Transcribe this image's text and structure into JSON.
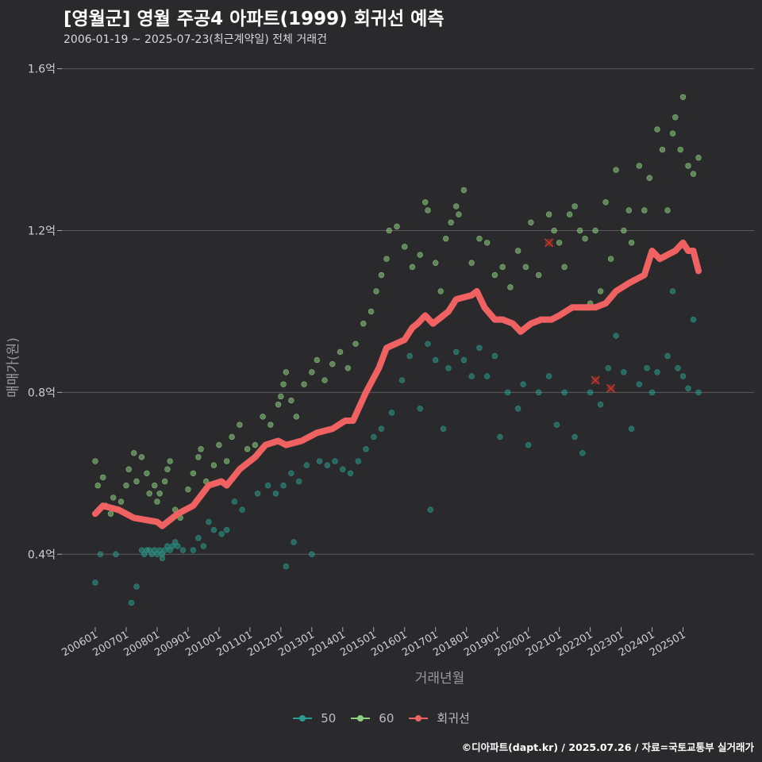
{
  "header": {
    "title": "[영월군] 영월 주공4 아파트(1999) 회귀선 예측",
    "subtitle": "2006-01-19 ~ 2025-07-23(최근계약일) 전체 거래건"
  },
  "caption": "©디아파트(dapt.kr) / 2025.07.26 / 자료=국토교통부 실거래가",
  "colors": {
    "background": "#2a2a2c",
    "gridline": "#5a5a5e",
    "series_50": "#2a9d8f",
    "series_60": "#8ed081",
    "regression": "#f06262"
  },
  "chart_data": {
    "type": "scatter",
    "title": "[영월군] 영월 주공4 아파트(1999) 회귀선 예측",
    "subtitle": "2006-01-19 ~ 2025-07-23(최근계약일) 전체 거래건",
    "xlabel": "거래년월",
    "ylabel": "매매가(원)",
    "xlim": [
      "2006-01",
      "2025-07"
    ],
    "ylim": [
      0.22,
      1.66
    ],
    "y_ticks": [
      0.4,
      0.8,
      1.2,
      1.6
    ],
    "y_tick_labels": [
      "0.4억",
      "0.8억",
      "1.2억",
      "1.6억"
    ],
    "x_ticks": [
      "2006-01",
      "2007-01",
      "2008-01",
      "2009-01",
      "2010-01",
      "2011-01",
      "2012-01",
      "2013-01",
      "2014-01",
      "2015-01",
      "2016-01",
      "2017-01",
      "2018-01",
      "2019-01",
      "2020-01",
      "2021-01",
      "2022-01",
      "2023-01",
      "2024-01",
      "2025-01"
    ],
    "x_tick_labels": [
      "200601",
      "200701",
      "200801",
      "200901",
      "201001",
      "201101",
      "201201",
      "201301",
      "201401",
      "201501",
      "201601",
      "201701",
      "201801",
      "201901",
      "202001",
      "202101",
      "202201",
      "202301",
      "202401",
      "202501"
    ],
    "grid": "horizontal",
    "legend_position": "bottom",
    "series": [
      {
        "name": "50",
        "points": [
          [
            "2006-01",
            0.33
          ],
          [
            "2006-03",
            0.4
          ],
          [
            "2006-09",
            0.4
          ],
          [
            "2007-03",
            0.28
          ],
          [
            "2007-05",
            0.32
          ],
          [
            "2007-07",
            0.41
          ],
          [
            "2007-08",
            0.4
          ],
          [
            "2007-09",
            0.41
          ],
          [
            "2007-10",
            0.41
          ],
          [
            "2007-11",
            0.4
          ],
          [
            "2007-12",
            0.41
          ],
          [
            "2008-01",
            0.4
          ],
          [
            "2008-02",
            0.41
          ],
          [
            "2008-03",
            0.39
          ],
          [
            "2008-03",
            0.4
          ],
          [
            "2008-04",
            0.41
          ],
          [
            "2008-05",
            0.42
          ],
          [
            "2008-06",
            0.41
          ],
          [
            "2008-07",
            0.42
          ],
          [
            "2008-08",
            0.43
          ],
          [
            "2008-09",
            0.42
          ],
          [
            "2008-11",
            0.41
          ],
          [
            "2009-03",
            0.41
          ],
          [
            "2009-05",
            0.44
          ],
          [
            "2009-07",
            0.42
          ],
          [
            "2009-09",
            0.48
          ],
          [
            "2009-11",
            0.46
          ],
          [
            "2010-02",
            0.45
          ],
          [
            "2010-04",
            0.46
          ],
          [
            "2010-07",
            0.53
          ],
          [
            "2010-10",
            0.51
          ],
          [
            "2011-04",
            0.55
          ],
          [
            "2011-08",
            0.57
          ],
          [
            "2011-11",
            0.55
          ],
          [
            "2012-02",
            0.57
          ],
          [
            "2012-05",
            0.6
          ],
          [
            "2012-08",
            0.58
          ],
          [
            "2012-11",
            0.62
          ],
          [
            "2012-03",
            0.37
          ],
          [
            "2012-06",
            0.43
          ],
          [
            "2013-01",
            0.4
          ],
          [
            "2013-04",
            0.63
          ],
          [
            "2013-07",
            0.62
          ],
          [
            "2013-10",
            0.63
          ],
          [
            "2014-01",
            0.61
          ],
          [
            "2014-04",
            0.6
          ],
          [
            "2014-07",
            0.63
          ],
          [
            "2014-10",
            0.66
          ],
          [
            "2015-01",
            0.69
          ],
          [
            "2015-04",
            0.71
          ],
          [
            "2015-08",
            0.75
          ],
          [
            "2015-12",
            0.83
          ],
          [
            "2016-03",
            0.89
          ],
          [
            "2016-07",
            0.76
          ],
          [
            "2016-10",
            0.92
          ],
          [
            "2016-11",
            0.51
          ],
          [
            "2017-01",
            0.88
          ],
          [
            "2017-04",
            0.71
          ],
          [
            "2017-06",
            0.86
          ],
          [
            "2017-09",
            0.9
          ],
          [
            "2017-12",
            0.88
          ],
          [
            "2018-03",
            0.84
          ],
          [
            "2018-06",
            0.91
          ],
          [
            "2018-09",
            0.84
          ],
          [
            "2018-12",
            0.89
          ],
          [
            "2019-02",
            0.69
          ],
          [
            "2019-05",
            0.8
          ],
          [
            "2019-09",
            0.76
          ],
          [
            "2019-11",
            0.82
          ],
          [
            "2020-01",
            0.67
          ],
          [
            "2020-05",
            0.8
          ],
          [
            "2020-09",
            0.84
          ],
          [
            "2020-12",
            0.72
          ],
          [
            "2021-03",
            0.8
          ],
          [
            "2021-07",
            0.69
          ],
          [
            "2021-10",
            0.65
          ],
          [
            "2022-01",
            0.8
          ],
          [
            "2022-05",
            0.77
          ],
          [
            "2022-08",
            0.86
          ],
          [
            "2022-11",
            0.94
          ],
          [
            "2023-02",
            0.85
          ],
          [
            "2023-05",
            0.71
          ],
          [
            "2023-08",
            0.82
          ],
          [
            "2023-11",
            0.86
          ],
          [
            "2024-01",
            0.8
          ],
          [
            "2024-03",
            0.85
          ],
          [
            "2024-07",
            0.89
          ],
          [
            "2024-09",
            1.05
          ],
          [
            "2024-11",
            0.86
          ],
          [
            "2025-01",
            0.84
          ],
          [
            "2025-03",
            0.81
          ],
          [
            "2025-05",
            0.98
          ],
          [
            "2025-07",
            0.8
          ]
        ]
      },
      {
        "name": "60",
        "points": [
          [
            "2006-01",
            0.63
          ],
          [
            "2006-02",
            0.57
          ],
          [
            "2006-04",
            0.59
          ],
          [
            "2006-05",
            0.52
          ],
          [
            "2006-07",
            0.5
          ],
          [
            "2006-08",
            0.54
          ],
          [
            "2006-11",
            0.53
          ],
          [
            "2007-01",
            0.57
          ],
          [
            "2007-02",
            0.61
          ],
          [
            "2007-04",
            0.65
          ],
          [
            "2007-05",
            0.58
          ],
          [
            "2007-07",
            0.64
          ],
          [
            "2007-09",
            0.6
          ],
          [
            "2007-10",
            0.55
          ],
          [
            "2007-12",
            0.57
          ],
          [
            "2008-01",
            0.53
          ],
          [
            "2008-02",
            0.55
          ],
          [
            "2008-04",
            0.58
          ],
          [
            "2008-05",
            0.61
          ],
          [
            "2008-06",
            0.63
          ],
          [
            "2008-08",
            0.51
          ],
          [
            "2008-10",
            0.49
          ],
          [
            "2009-01",
            0.56
          ],
          [
            "2009-03",
            0.6
          ],
          [
            "2009-05",
            0.64
          ],
          [
            "2009-06",
            0.66
          ],
          [
            "2009-08",
            0.58
          ],
          [
            "2009-11",
            0.62
          ],
          [
            "2010-01",
            0.67
          ],
          [
            "2010-04",
            0.63
          ],
          [
            "2010-06",
            0.69
          ],
          [
            "2010-09",
            0.72
          ],
          [
            "2010-12",
            0.66
          ],
          [
            "2011-03",
            0.67
          ],
          [
            "2011-06",
            0.74
          ],
          [
            "2011-09",
            0.72
          ],
          [
            "2011-12",
            0.77
          ],
          [
            "2012-01",
            0.79
          ],
          [
            "2012-02",
            0.82
          ],
          [
            "2012-03",
            0.85
          ],
          [
            "2012-05",
            0.78
          ],
          [
            "2012-07",
            0.74
          ],
          [
            "2012-10",
            0.82
          ],
          [
            "2013-01",
            0.85
          ],
          [
            "2013-03",
            0.88
          ],
          [
            "2013-06",
            0.83
          ],
          [
            "2013-09",
            0.87
          ],
          [
            "2013-12",
            0.9
          ],
          [
            "2014-03",
            0.86
          ],
          [
            "2014-06",
            0.92
          ],
          [
            "2014-09",
            0.97
          ],
          [
            "2014-12",
            1.0
          ],
          [
            "2015-02",
            1.05
          ],
          [
            "2015-04",
            1.09
          ],
          [
            "2015-06",
            1.13
          ],
          [
            "2015-07",
            1.2
          ],
          [
            "2015-10",
            1.21
          ],
          [
            "2016-01",
            1.16
          ],
          [
            "2016-04",
            1.11
          ],
          [
            "2016-07",
            1.14
          ],
          [
            "2016-09",
            1.27
          ],
          [
            "2016-10",
            1.25
          ],
          [
            "2017-01",
            1.12
          ],
          [
            "2017-03",
            1.05
          ],
          [
            "2017-05",
            1.18
          ],
          [
            "2017-07",
            1.22
          ],
          [
            "2017-09",
            1.26
          ],
          [
            "2017-10",
            1.24
          ],
          [
            "2017-12",
            1.3
          ],
          [
            "2018-03",
            1.12
          ],
          [
            "2018-06",
            1.18
          ],
          [
            "2018-09",
            1.17
          ],
          [
            "2018-12",
            1.09
          ],
          [
            "2019-03",
            1.11
          ],
          [
            "2019-06",
            1.06
          ],
          [
            "2019-09",
            1.15
          ],
          [
            "2019-12",
            1.11
          ],
          [
            "2020-02",
            1.22
          ],
          [
            "2020-05",
            1.09
          ],
          [
            "2020-09",
            1.24
          ],
          [
            "2020-11",
            1.2
          ],
          [
            "2021-01",
            1.17
          ],
          [
            "2021-03",
            1.11
          ],
          [
            "2021-05",
            1.24
          ],
          [
            "2021-07",
            1.26
          ],
          [
            "2021-09",
            1.2
          ],
          [
            "2021-11",
            1.18
          ],
          [
            "2022-01",
            1.02
          ],
          [
            "2022-03",
            1.2
          ],
          [
            "2022-05",
            1.05
          ],
          [
            "2022-07",
            1.27
          ],
          [
            "2022-09",
            1.13
          ],
          [
            "2022-11",
            1.35
          ],
          [
            "2023-02",
            1.2
          ],
          [
            "2023-04",
            1.25
          ],
          [
            "2023-05",
            1.17
          ],
          [
            "2023-08",
            1.36
          ],
          [
            "2023-10",
            1.25
          ],
          [
            "2023-12",
            1.33
          ],
          [
            "2024-03",
            1.45
          ],
          [
            "2024-05",
            1.4
          ],
          [
            "2024-07",
            1.25
          ],
          [
            "2024-09",
            1.44
          ],
          [
            "2024-10",
            1.48
          ],
          [
            "2024-12",
            1.4
          ],
          [
            "2025-01",
            1.53
          ],
          [
            "2025-03",
            1.36
          ],
          [
            "2025-05",
            1.34
          ],
          [
            "2025-07",
            1.38
          ]
        ]
      },
      {
        "name": "회귀선",
        "type": "line",
        "points": [
          [
            "2006-01",
            0.5
          ],
          [
            "2006-04",
            0.52
          ],
          [
            "2006-10",
            0.51
          ],
          [
            "2007-04",
            0.49
          ],
          [
            "2008-01",
            0.48
          ],
          [
            "2008-03",
            0.47
          ],
          [
            "2008-09",
            0.5
          ],
          [
            "2009-03",
            0.52
          ],
          [
            "2009-09",
            0.57
          ],
          [
            "2010-02",
            0.58
          ],
          [
            "2010-04",
            0.57
          ],
          [
            "2010-09",
            0.61
          ],
          [
            "2011-03",
            0.64
          ],
          [
            "2011-07",
            0.67
          ],
          [
            "2011-12",
            0.68
          ],
          [
            "2012-03",
            0.67
          ],
          [
            "2012-09",
            0.68
          ],
          [
            "2013-03",
            0.7
          ],
          [
            "2013-09",
            0.71
          ],
          [
            "2014-02",
            0.73
          ],
          [
            "2014-05",
            0.73
          ],
          [
            "2014-10",
            0.8
          ],
          [
            "2015-03",
            0.86
          ],
          [
            "2015-06",
            0.91
          ],
          [
            "2016-01",
            0.93
          ],
          [
            "2016-04",
            0.96
          ],
          [
            "2016-06",
            0.97
          ],
          [
            "2016-09",
            0.99
          ],
          [
            "2016-12",
            0.97
          ],
          [
            "2017-06",
            1.0
          ],
          [
            "2017-09",
            1.03
          ],
          [
            "2018-03",
            1.04
          ],
          [
            "2018-05",
            1.05
          ],
          [
            "2018-08",
            1.01
          ],
          [
            "2018-12",
            0.98
          ],
          [
            "2019-03",
            0.98
          ],
          [
            "2019-07",
            0.97
          ],
          [
            "2019-10",
            0.95
          ],
          [
            "2020-02",
            0.97
          ],
          [
            "2020-06",
            0.98
          ],
          [
            "2020-10",
            0.98
          ],
          [
            "2021-01",
            0.99
          ],
          [
            "2021-06",
            1.01
          ],
          [
            "2021-11",
            1.01
          ],
          [
            "2022-03",
            1.01
          ],
          [
            "2022-07",
            1.02
          ],
          [
            "2022-11",
            1.05
          ],
          [
            "2023-04",
            1.07
          ],
          [
            "2023-07",
            1.08
          ],
          [
            "2023-10",
            1.09
          ],
          [
            "2024-01",
            1.15
          ],
          [
            "2024-04",
            1.13
          ],
          [
            "2024-07",
            1.14
          ],
          [
            "2024-10",
            1.15
          ],
          [
            "2025-01",
            1.17
          ],
          [
            "2025-03",
            1.15
          ],
          [
            "2025-05",
            1.15
          ],
          [
            "2025-07",
            1.1
          ]
        ]
      }
    ],
    "outliers": [
      [
        "2020-09",
        1.17
      ],
      [
        "2022-03",
        0.83
      ],
      [
        "2022-09",
        0.81
      ]
    ]
  }
}
